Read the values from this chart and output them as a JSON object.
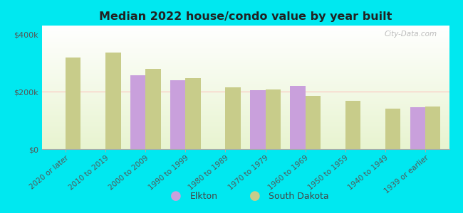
{
  "title": "Median 2022 house/condo value by year built",
  "categories": [
    "2020 or later",
    "2010 to 2019",
    "2000 to 2009",
    "1990 to 1999",
    "1980 to 1989",
    "1970 to 1979",
    "1960 to 1969",
    "1950 to 1959",
    "1940 to 1949",
    "1939 or earlier"
  ],
  "elkton": [
    null,
    null,
    258000,
    240000,
    null,
    205000,
    220000,
    null,
    null,
    145000
  ],
  "south_dakota": [
    320000,
    335000,
    280000,
    248000,
    215000,
    208000,
    185000,
    168000,
    140000,
    148000
  ],
  "elkton_color": "#c9a0dc",
  "south_dakota_color": "#c8cc8a",
  "background_outer": "#00e8f0",
  "bar_width": 0.38,
  "ylim": [
    0,
    430000
  ],
  "yticks": [
    0,
    200000,
    400000
  ],
  "ytick_labels": [
    "$0",
    "$200k",
    "$400k"
  ],
  "legend_labels": [
    "Elkton",
    "South Dakota"
  ],
  "watermark": "City-Data.com"
}
